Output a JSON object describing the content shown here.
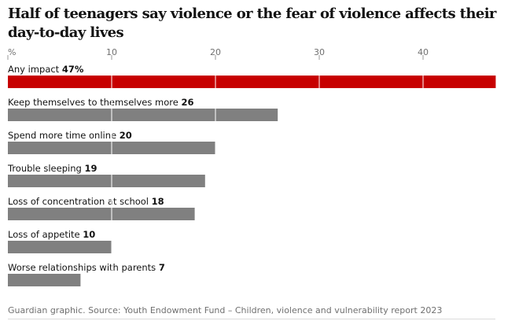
{
  "chart_data": {
    "type": "bar",
    "orientation": "horizontal",
    "title": "Half of teenagers say violence or the fear of violence affects their day-to-day lives",
    "unit_label": "%",
    "xlim": [
      0,
      47
    ],
    "ticks": [
      "10",
      "20",
      "30",
      "40"
    ],
    "tick_values": [
      10,
      20,
      30,
      40
    ],
    "categories": [
      "Any impact",
      "Keep themselves to themselves more",
      "Spend more time online",
      "Trouble sleeping",
      "Loss of concentration at school",
      "Loss of appetite",
      "Worse relationships with parents"
    ],
    "value_labels": [
      "47%",
      "26",
      "20",
      "19",
      "18",
      "10",
      "7"
    ],
    "values": [
      47,
      26,
      20,
      19,
      18,
      10,
      7
    ],
    "colors": [
      "#c70000",
      "#808080",
      "#808080",
      "#808080",
      "#808080",
      "#808080",
      "#808080"
    ],
    "highlight_color": "#c70000",
    "bar_color": "#808080",
    "source": "Guardian graphic. Source: Youth Endowment Fund – Children, violence and vulnerability report 2023"
  }
}
